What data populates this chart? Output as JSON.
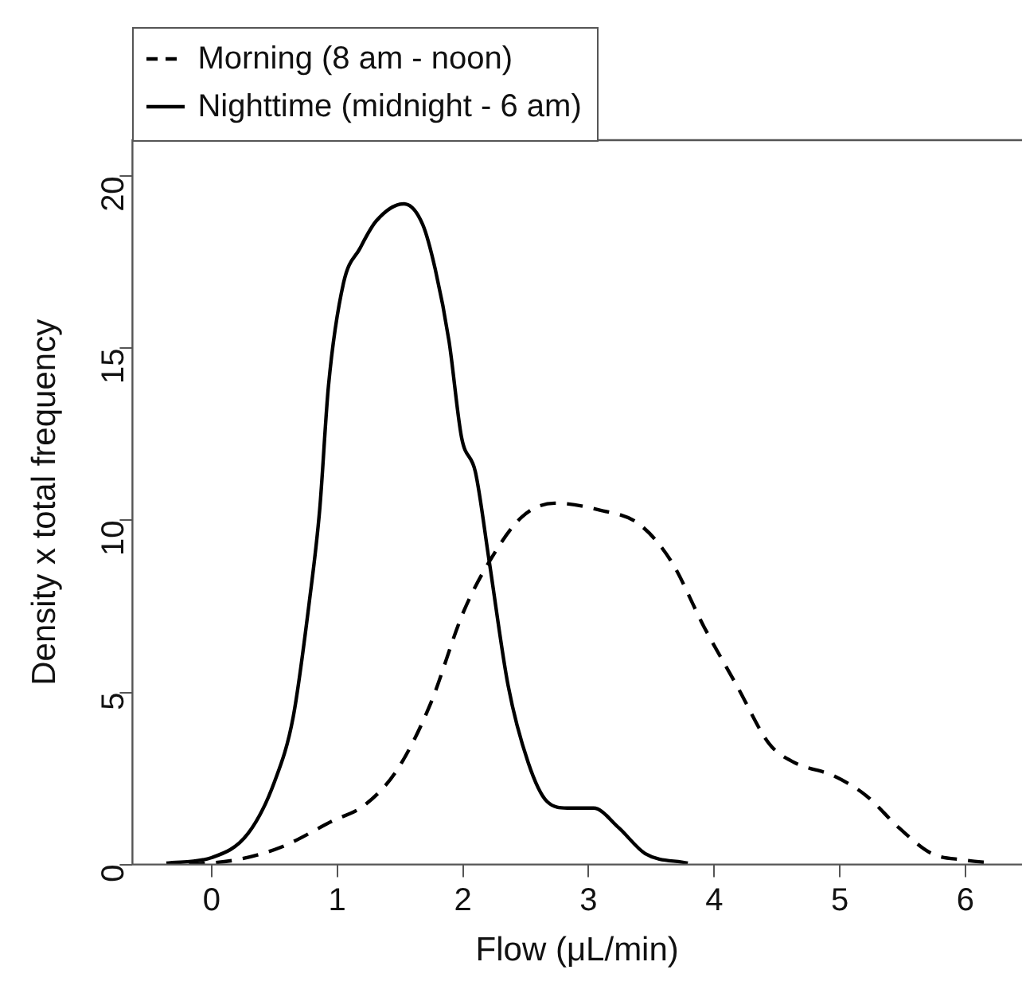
{
  "chart_data": {
    "type": "line",
    "xlabel": "Flow (μL/min)",
    "ylabel": "Density x total frequency",
    "xlim": [
      -0.63,
      6.45
    ],
    "ylim": [
      0,
      21.05
    ],
    "xticks": [
      0,
      1,
      2,
      3,
      4,
      5,
      6
    ],
    "yticks": [
      0,
      5,
      10,
      15,
      20
    ],
    "grid": false,
    "legend": "top left",
    "marker": "none",
    "series": [
      {
        "name": "Morning (8 am - noon)",
        "color": "#000000",
        "line_style": "dashed",
        "x": [
          -0.18,
          0.19,
          0.55,
          0.96,
          1.22,
          1.48,
          1.74,
          2.0,
          2.21,
          2.47,
          2.73,
          3.09,
          3.4,
          3.66,
          3.92,
          4.18,
          4.44,
          4.64,
          4.95,
          5.21,
          5.47,
          5.73,
          5.99,
          6.22
        ],
        "values": [
          0,
          0.13,
          0.5,
          1.26,
          1.73,
          2.77,
          4.65,
          7.3,
          8.8,
          10.1,
          10.5,
          10.3,
          9.9,
          8.8,
          6.9,
          5.2,
          3.5,
          2.96,
          2.58,
          2.0,
          1.07,
          0.32,
          0.13,
          0.04
        ]
      },
      {
        "name": "Nighttime (midnight - 6 am)",
        "color": "#000000",
        "line_style": "solid",
        "x": [
          -0.36,
          0,
          0.29,
          0.5,
          0.65,
          0.78,
          0.86,
          0.93,
          1.05,
          1.18,
          1.31,
          1.53,
          1.68,
          1.78,
          1.89,
          1.99,
          2.1,
          2.21,
          2.36,
          2.52,
          2.67,
          2.83,
          3.04,
          3.24,
          3.45,
          3.79
        ],
        "values": [
          0.04,
          0.2,
          0.9,
          2.4,
          4.3,
          7.7,
          10.3,
          13.9,
          16.9,
          17.9,
          18.7,
          19.2,
          18.6,
          17.3,
          15.2,
          12.4,
          11.4,
          8.8,
          5.2,
          2.96,
          1.83,
          1.64,
          1.64,
          1.07,
          0.32,
          0.04
        ]
      }
    ]
  }
}
